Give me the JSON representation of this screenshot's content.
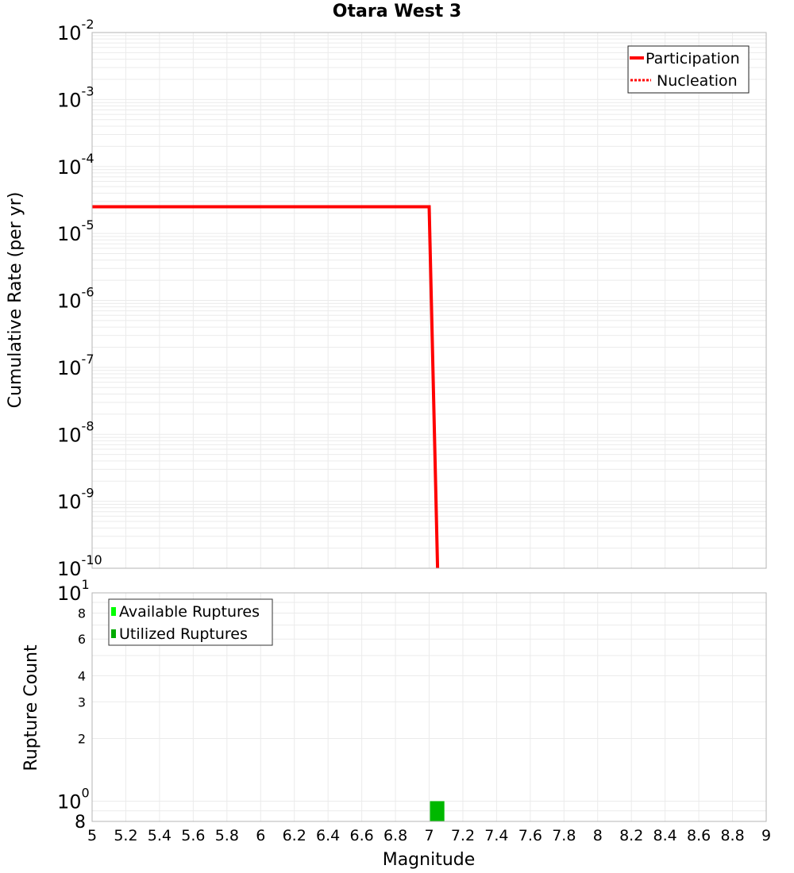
{
  "title": "Otara West 3",
  "chart_data": [
    {
      "type": "line",
      "title": "Otara West 3",
      "xlabel": "Magnitude",
      "ylabel": "Cumulative Rate (per yr)",
      "yscale": "log",
      "xlim": [
        5,
        9
      ],
      "ylim": [
        1e-10,
        0.01
      ],
      "x_ticks": [
        "5",
        "5.2",
        "5.4",
        "5.6",
        "5.8",
        "6",
        "6.2",
        "6.4",
        "6.6",
        "6.8",
        "7",
        "7.2",
        "7.4",
        "7.6",
        "7.8",
        "8",
        "8.2",
        "8.4",
        "8.6",
        "8.8",
        "9"
      ],
      "y_ticks": [
        {
          "base": "10",
          "exp": "-2",
          "value": 0.01
        },
        {
          "base": "10",
          "exp": "-3",
          "value": 0.001
        },
        {
          "base": "10",
          "exp": "-4",
          "value": 0.0001
        },
        {
          "base": "10",
          "exp": "-5",
          "value": 1e-05
        },
        {
          "base": "10",
          "exp": "-6",
          "value": 1e-06
        },
        {
          "base": "10",
          "exp": "-7",
          "value": 1e-07
        },
        {
          "base": "10",
          "exp": "-8",
          "value": 1e-08
        },
        {
          "base": "10",
          "exp": "-9",
          "value": 1e-09
        },
        {
          "base": "10",
          "exp": "-10",
          "value": 1e-10
        }
      ],
      "grid": true,
      "legend_position": "top-right",
      "series": [
        {
          "name": "Participation",
          "color": "#ff0000",
          "style": "solid",
          "x": [
            5.0,
            7.0,
            7.05
          ],
          "y": [
            2.5e-05,
            2.5e-05,
            1e-10
          ]
        },
        {
          "name": "Nucleation",
          "color": "#ff0000",
          "style": "dotted",
          "x": [
            5.0,
            7.0,
            7.05
          ],
          "y": [
            2.5e-05,
            2.5e-05,
            1e-10
          ]
        }
      ]
    },
    {
      "type": "bar",
      "xlabel": "Magnitude",
      "ylabel": "Rupture Count",
      "yscale": "log",
      "xlim": [
        5,
        9
      ],
      "ylim": [
        0.8,
        10
      ],
      "y_ticks": [
        {
          "label": "10",
          "exp": "1",
          "value": 10
        },
        {
          "label": "8",
          "value": 8
        },
        {
          "label": "6",
          "value": 6
        },
        {
          "label": "4",
          "value": 4
        },
        {
          "label": "3",
          "value": 3
        },
        {
          "label": "2",
          "value": 2
        },
        {
          "label": "10",
          "exp": "0",
          "value": 1
        },
        {
          "label": "8",
          "value": 0.8
        }
      ],
      "grid": true,
      "legend_position": "top-left",
      "series": [
        {
          "name": "Available Ruptures",
          "color": "#00ff00",
          "bins": [
            {
              "x0": 7.0,
              "x1": 7.1,
              "value": 1
            }
          ]
        },
        {
          "name": "Utilized Ruptures",
          "color": "#00bb00",
          "bins": [
            {
              "x0": 7.0,
              "x1": 7.1,
              "value": 1
            }
          ]
        }
      ]
    }
  ],
  "top_plot": {
    "ylabel": "Cumulative Rate (per yr)",
    "legend": [
      {
        "label": "Participation"
      },
      {
        "label": "Nucleation"
      }
    ]
  },
  "bottom_plot": {
    "ylabel": "Rupture Count",
    "xlabel": "Magnitude",
    "legend": [
      {
        "label": "Available Ruptures"
      },
      {
        "label": "Utilized Ruptures"
      }
    ]
  },
  "colors": {
    "participation": "#ff0000",
    "nucleation": "#ff0000",
    "available": "#00ff00",
    "utilized": "#00bb00",
    "grid": "#ebebeb",
    "frame": "#b4b4b4"
  }
}
